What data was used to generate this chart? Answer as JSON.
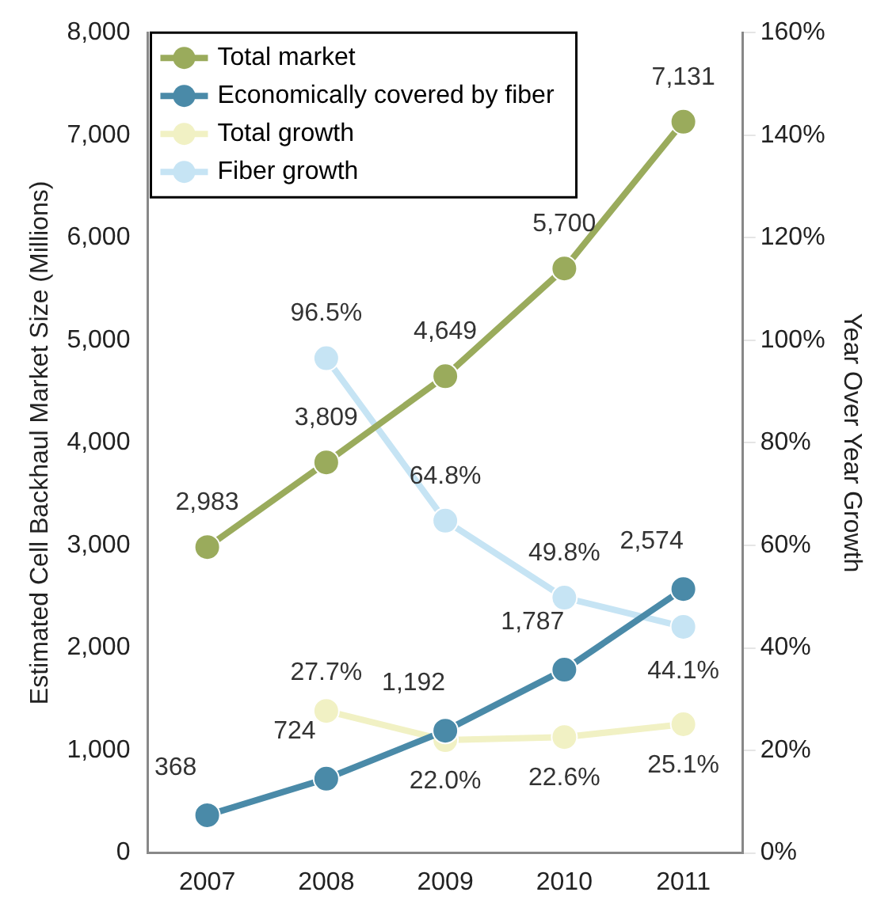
{
  "chart_data": {
    "type": "line",
    "categories": [
      "2007",
      "2008",
      "2009",
      "2010",
      "2011"
    ],
    "ylabel": "Estimated Cell Backhaul Market Size (Millions)",
    "y2label": "Year Over Year Growth",
    "ylim": [
      0,
      8000
    ],
    "yticks": [
      {
        "value": 0,
        "label": "0"
      },
      {
        "value": 1000,
        "label": "1,000"
      },
      {
        "value": 2000,
        "label": "2,000"
      },
      {
        "value": 3000,
        "label": "3,000"
      },
      {
        "value": 4000,
        "label": "4,000"
      },
      {
        "value": 5000,
        "label": "5,000"
      },
      {
        "value": 6000,
        "label": "6,000"
      },
      {
        "value": 7000,
        "label": "7,000"
      },
      {
        "value": 8000,
        "label": "8,000"
      }
    ],
    "y2lim": [
      0,
      160
    ],
    "y2ticks": [
      {
        "value": 0,
        "label": "0%"
      },
      {
        "value": 20,
        "label": "20%"
      },
      {
        "value": 40,
        "label": "40%"
      },
      {
        "value": 60,
        "label": "60%"
      },
      {
        "value": 80,
        "label": "80%"
      },
      {
        "value": 100,
        "label": "100%"
      },
      {
        "value": 120,
        "label": "120%"
      },
      {
        "value": 140,
        "label": "140%"
      },
      {
        "value": 160,
        "label": "160%"
      }
    ],
    "series": [
      {
        "name": "Total market",
        "color": "#9aab5c",
        "values": [
          2983,
          3809,
          4649,
          5700,
          7131
        ],
        "value_labels": [
          "2,983",
          "3,809",
          "4,649",
          "5,700",
          "7,131"
        ]
      },
      {
        "name": "Economically covered by fiber",
        "color": "#4a8aa8",
        "values": [
          368,
          724,
          1192,
          1787,
          2574
        ],
        "value_labels": [
          "368",
          "724",
          "1,192",
          "1,787",
          "2,574"
        ]
      },
      {
        "name": "Total growth",
        "color": "#f1f1c4",
        "axis": "y2",
        "values": [
          null,
          27.7,
          22.0,
          22.6,
          25.1
        ],
        "value_labels": [
          null,
          "27.7%",
          "22.0%",
          "22.6%",
          "25.1%"
        ]
      },
      {
        "name": "Fiber growth",
        "color": "#c6e4f4",
        "axis": "y2",
        "values": [
          null,
          96.5,
          64.8,
          49.8,
          44.1
        ],
        "value_labels": [
          null,
          "96.5%",
          "64.8%",
          "49.8%",
          "44.1%"
        ]
      }
    ],
    "marker": "circle",
    "line_style": "solid",
    "grid": false,
    "legend": "top left"
  }
}
